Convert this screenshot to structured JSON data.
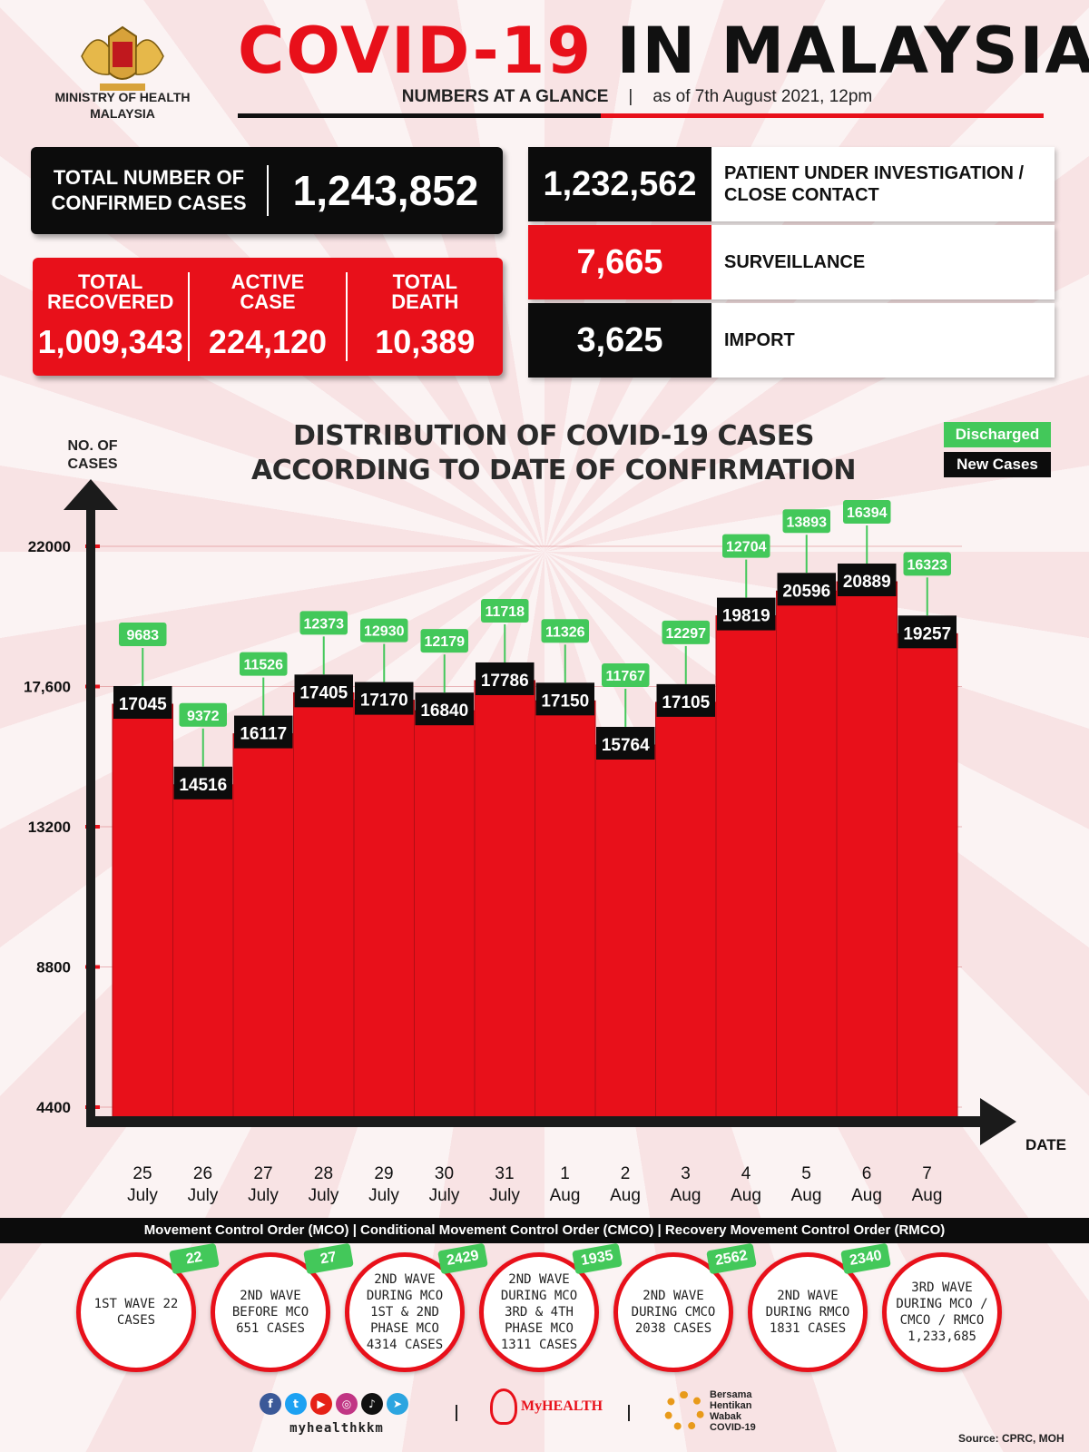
{
  "header": {
    "ministry_line1": "MINISTRY OF HEALTH",
    "ministry_line2": "MALAYSIA",
    "title_red": "COVID-19",
    "title_black": "IN MALAYSIA",
    "subtitle_left": "NUMBERS AT A GLANCE",
    "subtitle_sep": "|",
    "subtitle_right": "as of 7th August 2021, 12pm"
  },
  "stats": {
    "confirmed_label_1": "TOTAL NUMBER OF",
    "confirmed_label_2": "CONFIRMED CASES",
    "confirmed_value": "1,243,852",
    "recovered_label_1": "TOTAL",
    "recovered_label_2": "RECOVERED",
    "recovered_value": "1,009,343",
    "active_label_1": "ACTIVE",
    "active_label_2": "CASE",
    "active_value": "224,120",
    "death_label_1": "TOTAL",
    "death_label_2": "DEATH",
    "death_value": "10,389",
    "pui_value": "1,232,562",
    "pui_label_1": "PATIENT UNDER INVESTIGATION /",
    "pui_label_2": "CLOSE CONTACT",
    "surveillance_value": "7,665",
    "surveillance_label": "SURVEILLANCE",
    "import_value": "3,625",
    "import_label": "IMPORT"
  },
  "chart_data": {
    "type": "bar",
    "title_line1": "DISTRIBUTION OF COVID-19 CASES",
    "title_line2": "ACCORDING TO DATE OF CONFIRMATION",
    "ylabel_line1": "NO. OF",
    "ylabel_line2": "CASES",
    "xlabel": "DATE",
    "yticks": [
      "22000",
      "17,600",
      "13200",
      "8800",
      "4400"
    ],
    "ytick_values": [
      22000,
      17600,
      13200,
      8800,
      4400
    ],
    "ylim": [
      4400,
      22000
    ],
    "categories": [
      [
        "25",
        "July"
      ],
      [
        "26",
        "July"
      ],
      [
        "27",
        "July"
      ],
      [
        "28",
        "July"
      ],
      [
        "29",
        "July"
      ],
      [
        "30",
        "July"
      ],
      [
        "31",
        "July"
      ],
      [
        "1",
        "Aug"
      ],
      [
        "2",
        "Aug"
      ],
      [
        "3",
        "Aug"
      ],
      [
        "4",
        "Aug"
      ],
      [
        "5",
        "Aug"
      ],
      [
        "6",
        "Aug"
      ],
      [
        "7",
        "Aug"
      ]
    ],
    "series": [
      {
        "name": "New Cases",
        "values": [
          17045,
          14516,
          16117,
          17405,
          17170,
          16840,
          17786,
          17150,
          15764,
          17105,
          19819,
          20596,
          20889,
          19257
        ]
      },
      {
        "name": "Discharged",
        "values": [
          9683,
          9372,
          11526,
          12373,
          12930,
          12179,
          11718,
          11326,
          11767,
          12297,
          12704,
          13893,
          16394,
          16323
        ]
      }
    ],
    "legend": [
      "Discharged",
      "New Cases"
    ],
    "legend_placement": "top-right",
    "colors": {
      "bar": "#e8101a",
      "new_label": "#0c0c0c",
      "discharged_label": "#43c85a"
    }
  },
  "footer": {
    "mco_bar": "Movement Control Order (MCO) | Conditional Movement Control Order (CMCO) | Recovery Movement Control Order (RMCO)",
    "waves": [
      {
        "text": "1ST WAVE 22 CASES",
        "tag": "22"
      },
      {
        "text": "2ND WAVE BEFORE MCO 651 CASES",
        "tag": "27"
      },
      {
        "text": "2ND WAVE DURING MCO 1ST & 2ND PHASE MCO 4314 CASES",
        "tag": "2429"
      },
      {
        "text": "2ND WAVE DURING MCO 3RD & 4TH PHASE MCO 1311 CASES",
        "tag": "1935"
      },
      {
        "text": "2ND WAVE DURING CMCO 2038 CASES",
        "tag": "2562"
      },
      {
        "text": "2ND WAVE DURING RMCO 1831 CASES",
        "tag": "2340"
      },
      {
        "text": "3RD WAVE DURING MCO / CMCO / RMCO 1,233,685",
        "tag": ""
      }
    ],
    "handle": "myhealthkkm",
    "myhealth": "MyHEALTH",
    "bersama_1": "Bersama",
    "bersama_2": "Hentikan",
    "bersama_3": "Wabak",
    "bersama_4": "COVID-19",
    "source": "Source: CPRC, MOH"
  },
  "icons": [
    "crest-icon",
    "facebook-icon",
    "twitter-icon",
    "youtube-icon",
    "instagram-icon",
    "tiktok-icon",
    "telegram-icon"
  ]
}
